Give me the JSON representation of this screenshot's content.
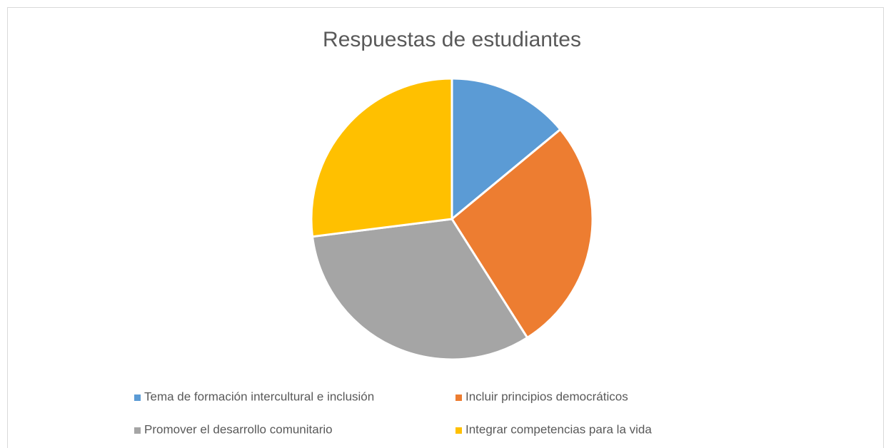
{
  "chart_data": {
    "type": "pie",
    "title": "Respuestas de estudiantes",
    "categories": [
      "Tema de formación intercultural e inclusión",
      "Incluir principios democráticos",
      "Promover el desarrollo comunitario",
      "Integrar competencias para la vida"
    ],
    "values": [
      14,
      27,
      32,
      27
    ],
    "colors": [
      "#5b9bd5",
      "#ed7d31",
      "#a5a5a5",
      "#ffc000"
    ],
    "legend": "bottom"
  }
}
